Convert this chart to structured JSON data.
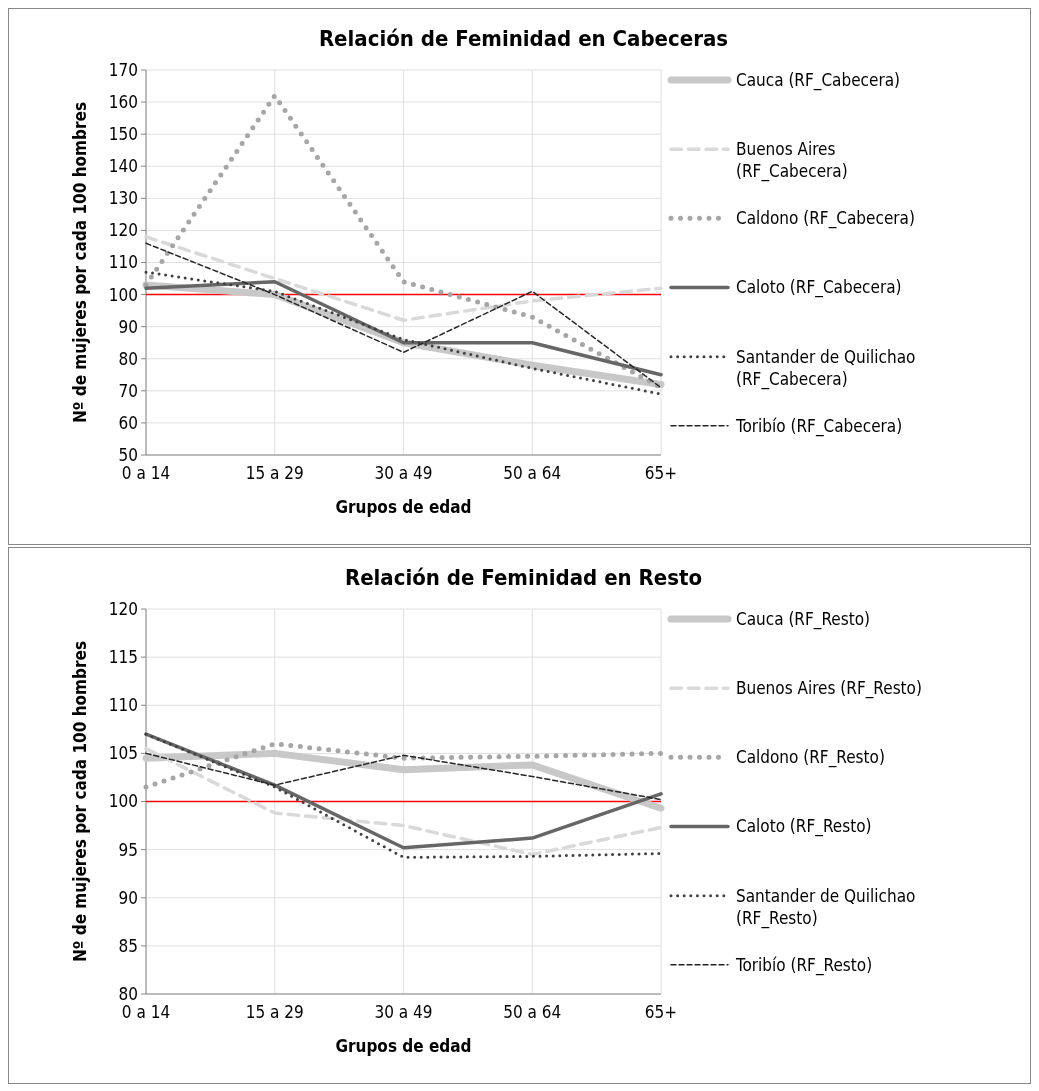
{
  "chart_data": [
    {
      "type": "line",
      "title": "Relación de Feminidad en Cabeceras",
      "xlabel": "Grupos de edad",
      "ylabel": "Nº de mujeres por cada 100 hombres",
      "categories": [
        "0 a 14",
        "15 a 29",
        "30 a 49",
        "50 a 64",
        "65+"
      ],
      "ylim": [
        50,
        170
      ],
      "yticks": [
        50,
        60,
        70,
        80,
        90,
        100,
        110,
        120,
        130,
        140,
        150,
        160,
        170
      ],
      "grid": true,
      "legend": "right",
      "ref_lines": [
        {
          "axis": "y",
          "value": 100,
          "color": "#ff0000"
        }
      ],
      "series": [
        {
          "name": "Cauca (RF_Cabecera)",
          "color": "#c8c8c8",
          "line_style": "solid",
          "values": [
            103,
            100,
            85,
            78,
            72
          ]
        },
        {
          "name": "Buenos Aires (RF_Cabecera)",
          "color": "#d9d9d9",
          "line_style": "dashed",
          "values": [
            118,
            105,
            92,
            98,
            102
          ]
        },
        {
          "name": "Caldono (RF_Cabecera)",
          "color": "#a6a6a6",
          "line_style": "dotted",
          "values": [
            103,
            162,
            104,
            93,
            71
          ]
        },
        {
          "name": "Caloto (RF_Cabecera)",
          "color": "#666666",
          "line_style": "solid",
          "values": [
            102,
            104,
            85,
            85,
            75
          ]
        },
        {
          "name": "Santander de Quilichao (RF_Cabecera)",
          "color": "#404040",
          "line_style": "dotted",
          "values": [
            107,
            101,
            86,
            77,
            69
          ]
        },
        {
          "name": "Toribío (RF_Cabecera)",
          "color": "#262626",
          "line_style": "dashed",
          "values": [
            116,
            100,
            82,
            101,
            71
          ]
        }
      ]
    },
    {
      "type": "line",
      "title": "Relación de Feminidad en Resto",
      "xlabel": "Grupos de edad",
      "ylabel": "Nº de mujeres por cada 100 hombres",
      "categories": [
        "0 a 14",
        "15 a 29",
        "30 a 49",
        "50 a 64",
        "65+"
      ],
      "ylim": [
        80,
        120
      ],
      "yticks": [
        80,
        85,
        90,
        95,
        100,
        105,
        110,
        115,
        120
      ],
      "grid": true,
      "legend": "right",
      "ref_lines": [
        {
          "axis": "y",
          "value": 100,
          "color": "#ff0000"
        }
      ],
      "series": [
        {
          "name": "Cauca (RF_Resto)",
          "color": "#c8c8c8",
          "line_style": "solid",
          "values": [
            104.5,
            105,
            103.3,
            103.8,
            99.3
          ]
        },
        {
          "name": "Buenos Aires (RF_Resto)",
          "color": "#d9d9d9",
          "line_style": "dashed",
          "values": [
            105.5,
            98.8,
            97.5,
            94.5,
            97.3
          ]
        },
        {
          "name": "Caldono (RF_Resto)",
          "color": "#a6a6a6",
          "line_style": "dotted",
          "values": [
            101.5,
            106,
            104.5,
            104.7,
            105
          ]
        },
        {
          "name": "Caloto (RF_Resto)",
          "color": "#666666",
          "line_style": "solid",
          "values": [
            107,
            101.7,
            95.2,
            96.2,
            100.8
          ]
        },
        {
          "name": "Santander de Quilichao (RF_Resto)",
          "color": "#404040",
          "line_style": "dotted",
          "values": [
            107,
            101.5,
            94.2,
            94.3,
            94.6
          ]
        },
        {
          "name": "Toribío (RF_Resto)",
          "color": "#262626",
          "line_style": "dashed",
          "values": [
            105,
            101.7,
            104.8,
            102.6,
            100.2
          ]
        }
      ]
    }
  ]
}
